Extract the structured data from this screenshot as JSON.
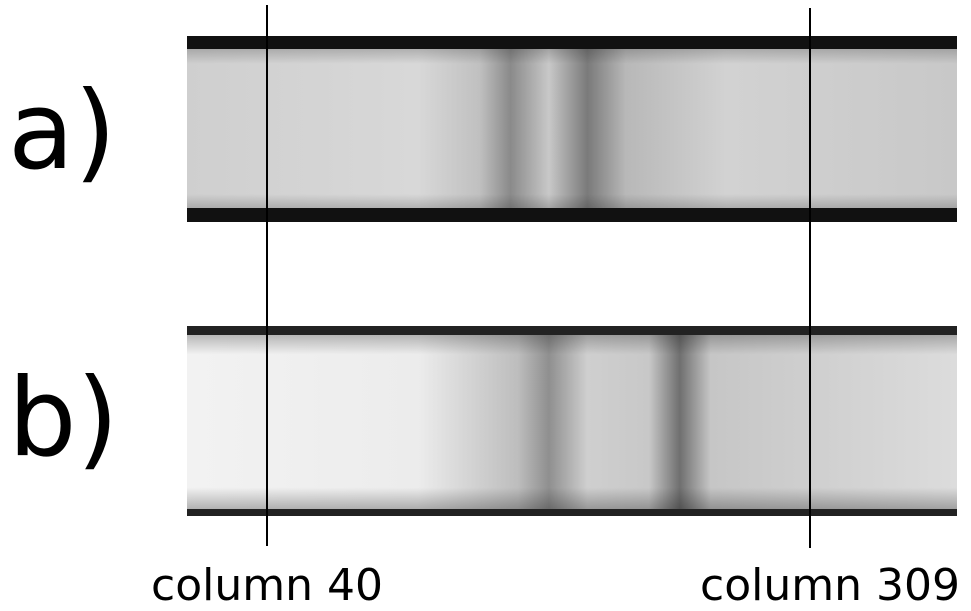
{
  "panels": [
    {
      "label": "a)"
    },
    {
      "label": "b)"
    }
  ],
  "columns": [
    {
      "label": "column 40"
    },
    {
      "label": "column 309"
    }
  ]
}
